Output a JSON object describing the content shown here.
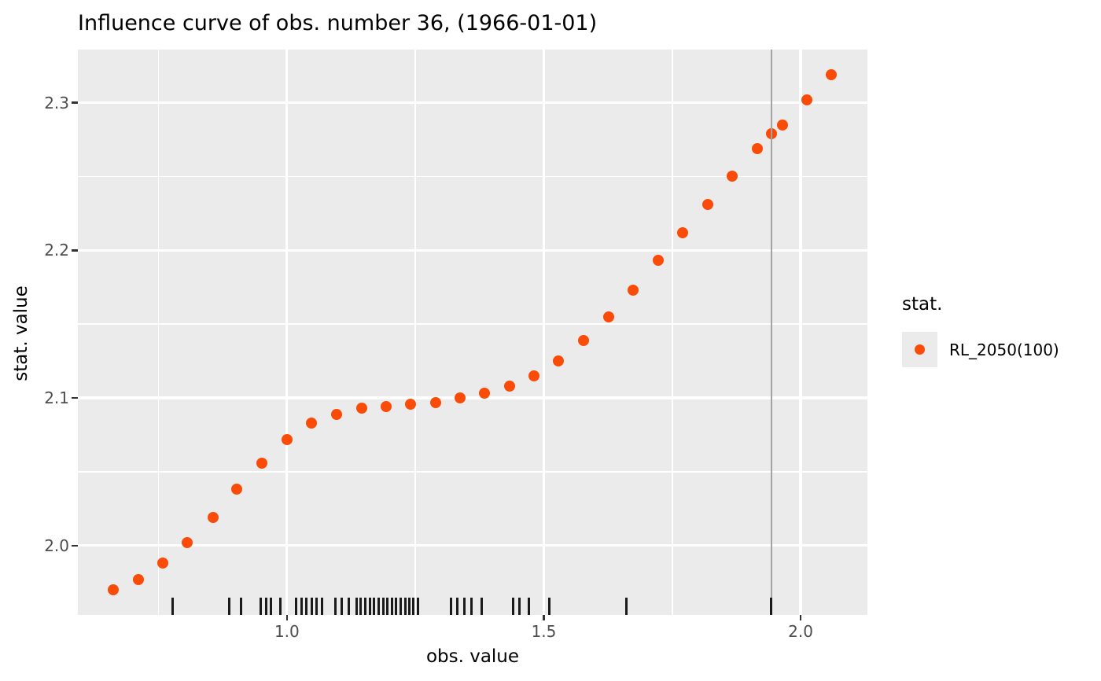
{
  "title": "Influence curve of obs. number 36, (1966-01-01)",
  "legend": {
    "title": "stat.",
    "items": [
      {
        "label": "RL_2050(100)",
        "color": "#FB4B08"
      }
    ]
  },
  "colors": {
    "background": "#FFFFFF",
    "panel": "#EBEBEB",
    "grid": "#FFFFFF",
    "points": "#FB4B08",
    "vline": "#A3A3A3",
    "rug": "#1A1A1A",
    "tick": "#333333",
    "tick_label": "#4D4D4D",
    "text": "#000000"
  },
  "chart_data": {
    "type": "scatter",
    "title": "Influence curve of obs. number 36, (1966-01-01)",
    "xlabel": "obs. value",
    "ylabel": "stat. value",
    "xlim": [
      0.593,
      2.13
    ],
    "ylim": [
      1.953,
      2.336
    ],
    "grid": true,
    "legend_position": "right",
    "x_major_ticks": [
      1.0,
      1.5,
      2.0
    ],
    "x_tick_labels": [
      "1.0",
      "1.5",
      "2.0"
    ],
    "x_minor_ticks": [
      0.75,
      1.25,
      1.75
    ],
    "y_major_ticks": [
      2.0,
      2.1,
      2.2,
      2.3
    ],
    "y_tick_labels": [
      "2.0",
      "2.1",
      "2.2",
      "2.3"
    ],
    "y_minor_ticks": [
      2.05,
      2.15,
      2.25
    ],
    "vline": {
      "x": 1.943,
      "color": "#A3A3A3"
    },
    "series": [
      {
        "name": "RL_2050(100)",
        "color": "#FB4B08",
        "marker": "circle",
        "points": [
          [
            0.662,
            1.97
          ],
          [
            0.711,
            1.977
          ],
          [
            0.759,
            1.988
          ],
          [
            0.806,
            2.002
          ],
          [
            0.856,
            2.019
          ],
          [
            0.903,
            2.038
          ],
          [
            0.951,
            2.056
          ],
          [
            1.0,
            2.072
          ],
          [
            1.048,
            2.083
          ],
          [
            1.097,
            2.089
          ],
          [
            1.145,
            2.093
          ],
          [
            1.193,
            2.094
          ],
          [
            1.24,
            2.096
          ],
          [
            1.289,
            2.097
          ],
          [
            1.337,
            2.1
          ],
          [
            1.384,
            2.103
          ],
          [
            1.433,
            2.108
          ],
          [
            1.481,
            2.115
          ],
          [
            1.528,
            2.125
          ],
          [
            1.577,
            2.139
          ],
          [
            1.626,
            2.155
          ],
          [
            1.674,
            2.173
          ],
          [
            1.723,
            2.193
          ],
          [
            1.77,
            2.212
          ],
          [
            1.819,
            2.231
          ],
          [
            1.867,
            2.25
          ],
          [
            1.916,
            2.269
          ],
          [
            1.943,
            2.279
          ],
          [
            1.964,
            2.285
          ],
          [
            2.012,
            2.302
          ],
          [
            2.059,
            2.319
          ]
        ]
      }
    ],
    "rug_x": [
      0.778,
      0.888,
      0.91,
      0.949,
      0.959,
      0.969,
      0.987,
      1.018,
      1.028,
      1.038,
      1.049,
      1.058,
      1.068,
      1.094,
      1.107,
      1.12,
      1.135,
      1.144,
      1.153,
      1.162,
      1.17,
      1.179,
      1.187,
      1.196,
      1.204,
      1.213,
      1.221,
      1.23,
      1.238,
      1.246,
      1.255,
      1.319,
      1.332,
      1.346,
      1.359,
      1.379,
      1.441,
      1.452,
      1.471,
      1.51,
      1.661,
      1.943
    ]
  }
}
